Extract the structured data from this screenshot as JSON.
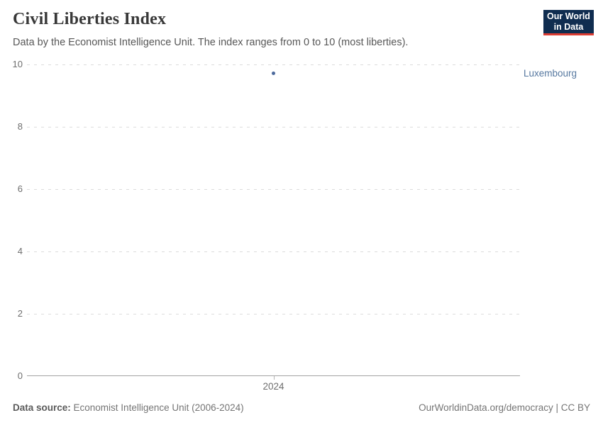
{
  "header": {
    "title": "Civil Liberties Index",
    "subtitle": "Data by the Economist Intelligence Unit. The index ranges from 0 to 10 (most liberties).",
    "logo": {
      "line1": "Our World",
      "line2": "in Data",
      "bg_color": "#102d50",
      "accent_color": "#dc3d33"
    }
  },
  "chart_data": {
    "type": "scatter",
    "title": "Civil Liberties Index",
    "subtitle": "Data by the Economist Intelligence Unit. The index ranges from 0 to 10 (most liberties).",
    "x": [
      2024
    ],
    "xtick_labels": [
      "2024"
    ],
    "series": [
      {
        "name": "Luxembourg",
        "values": [
          9.71
        ],
        "color": "#4c6a9c"
      }
    ],
    "entity_label": {
      "text": "Luxembourg",
      "color": "#55779f"
    },
    "ylim": [
      0,
      10
    ],
    "yticks": [
      0,
      2,
      4,
      6,
      8,
      10
    ],
    "grid": "horizontal-dashed",
    "legend_position": "right-of-point"
  },
  "footer": {
    "source_label": "Data source:",
    "source_text": " Economist Intelligence Unit (2006-2024)",
    "credit": "OurWorldinData.org/democracy | CC BY"
  }
}
